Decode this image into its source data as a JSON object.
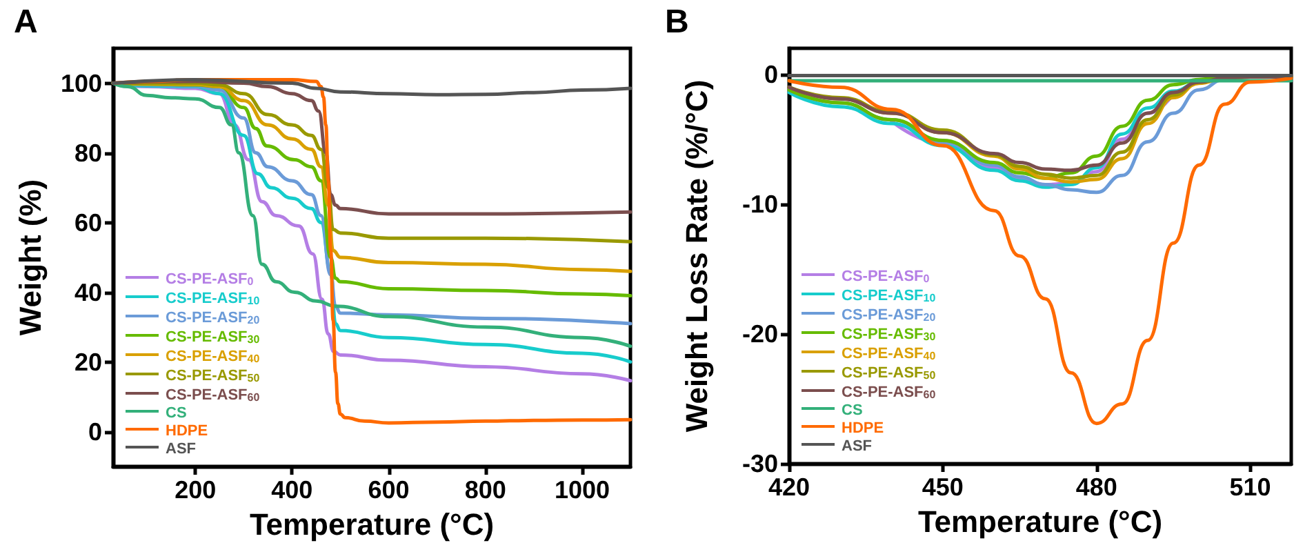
{
  "chart_data": [
    {
      "type": "line",
      "xlabel": "Temperature (°C)",
      "ylabel": "Weight (%)",
      "annotations": [
        "A"
      ],
      "xlim": [
        30,
        1100
      ],
      "xticks": [
        200,
        400,
        600,
        800,
        1000
      ],
      "ylim": [
        -10,
        110
      ],
      "yticks": [
        0,
        20,
        40,
        60,
        80,
        100
      ],
      "grid": false,
      "legend": "bottom left",
      "marker": "none",
      "line_style": "solid",
      "series": [
        {
          "name": "CS-PE-ASF$_{0}$",
          "color": "#b47ee5",
          "x": [
            30,
            100,
            200,
            250,
            281,
            310,
            338,
            367,
            414,
            443,
            462,
            475,
            486,
            500,
            600,
            800,
            1000,
            1100
          ],
          "values": [
            100,
            99,
            98.5,
            97,
            88,
            78,
            66,
            62,
            59,
            51,
            38,
            28,
            23,
            22,
            20.5,
            18.6,
            16.6,
            14.6
          ]
        },
        {
          "name": "CS-PE-ASF$_{10}$",
          "color": "#17cccc",
          "x": [
            30,
            100,
            200,
            250,
            300,
            329,
            357,
            400,
            440,
            460,
            480,
            490,
            500,
            600,
            800,
            1000,
            1100
          ],
          "values": [
            100,
            99.2,
            99,
            97,
            85,
            74,
            70,
            67,
            64,
            60,
            46,
            31,
            29,
            27,
            25,
            22.5,
            20
          ]
        },
        {
          "name": "CS-PE-ASF$_{20}$",
          "color": "#6b9bd8",
          "x": [
            30,
            100,
            200,
            250,
            300,
            325,
            350,
            400,
            440,
            460,
            480,
            490,
            500,
            600,
            800,
            1100
          ],
          "values": [
            100,
            99.5,
            99.2,
            98,
            90,
            80,
            76,
            72,
            68,
            62,
            45,
            36,
            34,
            33.5,
            32.5,
            31
          ]
        },
        {
          "name": "CS-PE-ASF$_{30}$",
          "color": "#66bb00",
          "x": [
            30,
            100,
            200,
            250,
            300,
            325,
            348,
            405,
            440,
            460,
            480,
            490,
            500,
            600,
            800,
            1000,
            1100
          ],
          "values": [
            100,
            99.7,
            99.5,
            99,
            93,
            87,
            82,
            78,
            76,
            72,
            50,
            44,
            43,
            41,
            40.5,
            39.5,
            39
          ]
        },
        {
          "name": "CS-PE-ASF$_{40}$",
          "color": "#d9a000",
          "x": [
            30,
            100,
            200,
            250,
            300,
            350,
            400,
            440,
            460,
            475,
            485,
            500,
            600,
            800,
            1000,
            1100
          ],
          "values": [
            100,
            99.8,
            99.7,
            99,
            95,
            88,
            84,
            81,
            76,
            65,
            52,
            50,
            48.5,
            48,
            46.5,
            46
          ]
        },
        {
          "name": "CS-PE-ASF$_{50}$",
          "color": "#999900",
          "x": [
            30,
            100,
            200,
            250,
            300,
            350,
            400,
            440,
            460,
            475,
            485,
            500,
            600,
            800,
            1100
          ],
          "values": [
            100,
            100,
            100,
            99.5,
            97,
            91,
            88,
            85,
            81,
            70,
            58,
            57,
            55.5,
            55.5,
            54.5
          ]
        },
        {
          "name": "CS-PE-ASF$_{60}$",
          "color": "#7b4e4e",
          "x": [
            30,
            200,
            300,
            350,
            400,
            440,
            455,
            470,
            480,
            490,
            500,
            600,
            800,
            1100
          ],
          "values": [
            100,
            100.5,
            100,
            99,
            97,
            95,
            92,
            80,
            68,
            65,
            64,
            62.5,
            62.5,
            63
          ]
        },
        {
          "name": "CS",
          "color": "#33b07a",
          "x": [
            30,
            60,
            100,
            150,
            200,
            250,
            275,
            290,
            319,
            338,
            367,
            405,
            450,
            490,
            600,
            800,
            1000,
            1100
          ],
          "values": [
            100,
            99,
            96.5,
            95.8,
            95.5,
            93,
            88,
            80,
            62,
            48,
            43,
            40,
            37.5,
            36,
            33,
            30,
            27,
            24.5
          ]
        },
        {
          "name": "HDPE",
          "color": "#ff6a00",
          "x": [
            30,
            100,
            200,
            300,
            400,
            450,
            460,
            465,
            470,
            475,
            480,
            485,
            490,
            495,
            500,
            510,
            550,
            600,
            700,
            800,
            900,
            1000,
            1100
          ],
          "values": [
            100,
            100.5,
            101,
            101,
            101,
            100.5,
            99,
            96,
            88,
            72,
            52,
            32,
            17,
            8,
            5,
            4,
            3,
            2.5,
            2.7,
            3,
            3.2,
            3.3,
            3.4
          ]
        },
        {
          "name": "ASF",
          "color": "#555555",
          "x": [
            30,
            200,
            400,
            450,
            500,
            600,
            700,
            800,
            900,
            1000,
            1100
          ],
          "values": [
            100,
            101,
            100,
            98.5,
            97.5,
            97,
            96.7,
            96.8,
            97.3,
            98,
            98.5
          ]
        }
      ]
    },
    {
      "type": "line",
      "xlabel": "Temperature (°C)",
      "ylabel": "Weight Loss Rate (%/°C)",
      "annotations": [
        "B"
      ],
      "xlim": [
        420,
        518
      ],
      "xticks": [
        420,
        450,
        480,
        510
      ],
      "ylim": [
        -30,
        2
      ],
      "yticks": [
        -30,
        -20,
        -10,
        0
      ],
      "grid": false,
      "legend": "bottom left",
      "marker": "none",
      "line_style": "solid",
      "x": [
        420,
        430,
        440,
        450,
        460,
        465,
        470,
        475,
        480,
        485,
        490,
        495,
        500,
        505,
        510,
        518
      ],
      "series": [
        {
          "name": "CS-PE-ASF$_{0}$",
          "color": "#b47ee5",
          "values": [
            null,
            null,
            -3.6,
            -5.3,
            -7.2,
            -8,
            -8.5,
            -8.4,
            -7.5,
            -5,
            -3,
            -1.5,
            null,
            null,
            null,
            null
          ]
        },
        {
          "name": "CS-PE-ASF$_{10}$",
          "color": "#17cccc",
          "values": [
            -1.4,
            -2.5,
            -3.8,
            -5.5,
            -7.4,
            -8.2,
            -8.7,
            -8.5,
            -7.2,
            -4.6,
            -2.6,
            -1.3,
            -0.6,
            -0.3,
            null,
            null
          ]
        },
        {
          "name": "CS-PE-ASF$_{20}$",
          "color": "#6b9bd8",
          "values": [
            -1.2,
            -2.2,
            -3.5,
            -5.2,
            -7,
            -7.9,
            -8.5,
            -8.9,
            -9.1,
            -7.8,
            -5.2,
            -3,
            -1.2,
            -0.4,
            -0.2,
            -0.2
          ]
        },
        {
          "name": "CS-PE-ASF$_{30}$",
          "color": "#66bb00",
          "values": [
            -1.2,
            -2.2,
            -3.5,
            -5.1,
            -6.8,
            -7.6,
            -8,
            -7.6,
            -6.3,
            -4,
            -2,
            -0.8,
            -0.4,
            -0.2,
            -0.2,
            -0.2
          ]
        },
        {
          "name": "CS-PE-ASF$_{40}$",
          "color": "#d9a000",
          "values": [
            -1,
            -1.9,
            -3,
            -4.5,
            -6.3,
            -7.3,
            -8,
            -8.3,
            -8.1,
            -6.5,
            -3.8,
            -1.8,
            -0.7,
            -0.3,
            -0.2,
            -0.2
          ]
        },
        {
          "name": "CS-PE-ASF$_{50}$",
          "color": "#999900",
          "values": [
            -1,
            -1.8,
            -2.9,
            -4.3,
            -6.2,
            -7.1,
            -7.7,
            -8,
            -7.8,
            -6,
            -3.5,
            -1.6,
            -0.6,
            -0.3,
            -0.2,
            -0.2
          ]
        },
        {
          "name": "CS-PE-ASF$_{60}$",
          "color": "#7b4e4e",
          "values": [
            -1,
            -1.9,
            -3,
            -4.5,
            -6.1,
            -6.8,
            -7.3,
            -7.4,
            -7,
            -5.3,
            -3,
            -1.4,
            -0.6,
            -0.3,
            -0.2,
            -0.2
          ]
        },
        {
          "name": "CS",
          "color": "#33b07a",
          "values": [
            -0.5,
            -0.5,
            -0.5,
            -0.5,
            -0.5,
            -0.5,
            -0.5,
            -0.5,
            -0.5,
            -0.5,
            -0.5,
            -0.5,
            -0.5,
            -0.5,
            -0.5,
            -0.5
          ]
        },
        {
          "name": "HDPE",
          "color": "#ff6a00",
          "values": [
            -0.5,
            -1,
            -2.7,
            -5.5,
            -10.5,
            -14,
            -17.3,
            -23,
            -26.9,
            -25.4,
            -20.5,
            -13,
            -7,
            -2.3,
            -0.6,
            -0.3
          ]
        },
        {
          "name": "ASF",
          "color": "#555555",
          "values": [
            -0.1,
            -0.1,
            -0.1,
            -0.1,
            -0.1,
            -0.1,
            -0.1,
            -0.1,
            -0.1,
            -0.1,
            -0.1,
            -0.1,
            -0.1,
            -0.1,
            -0.1,
            -0.1
          ]
        }
      ]
    }
  ]
}
